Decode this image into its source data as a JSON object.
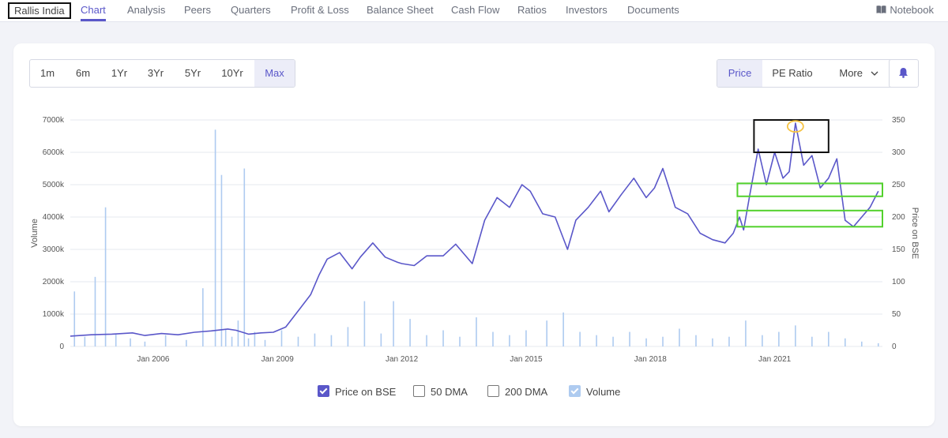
{
  "nav": {
    "company": "Rallis India",
    "items": [
      "Chart",
      "Analysis",
      "Peers",
      "Quarters",
      "Profit & Loss",
      "Balance Sheet",
      "Cash Flow",
      "Ratios",
      "Investors",
      "Documents"
    ],
    "notebook": "Notebook"
  },
  "ranges": [
    "1m",
    "6m",
    "1Yr",
    "3Yr",
    "5Yr",
    "10Yr",
    "Max"
  ],
  "metrics": {
    "price": "Price",
    "pe": "PE Ratio",
    "more": "More"
  },
  "legend": {
    "price": "Price on BSE",
    "dma50": "50 DMA",
    "dma200": "200 DMA",
    "volume": "Volume"
  },
  "colors": {
    "price": "#5a57c9",
    "volume": "#aecbf0",
    "highlight_green": "#52d12c",
    "highlight_yellow": "#f6c343"
  },
  "chart_data": {
    "type": "line",
    "title": "",
    "ylabel_left": "Volume",
    "ylabel_right": "Price on BSE",
    "y_left_ticks": [
      "0",
      "1000k",
      "2000k",
      "3000k",
      "4000k",
      "5000k",
      "6000k",
      "7000k"
    ],
    "y_right_ticks": [
      "0",
      "50",
      "100",
      "150",
      "200",
      "250",
      "300",
      "350"
    ],
    "ylim_left": [
      0,
      7000000
    ],
    "ylim_right": [
      0,
      350
    ],
    "xlim": [
      2004.0,
      2023.6
    ],
    "x_ticks": [
      {
        "label": "Jan 2006",
        "x": 2006.0
      },
      {
        "label": "Jan 2009",
        "x": 2009.0
      },
      {
        "label": "Jan 2012",
        "x": 2012.0
      },
      {
        "label": "Jan 2015",
        "x": 2015.0
      },
      {
        "label": "Jan 2018",
        "x": 2018.0
      },
      {
        "label": "Jan 2021",
        "x": 2021.0
      }
    ],
    "series": [
      {
        "name": "Price on BSE",
        "axis": "right",
        "x": [
          2004.0,
          2004.5,
          2005.0,
          2005.5,
          2005.8,
          2006.2,
          2006.6,
          2007.0,
          2007.4,
          2007.8,
          2008.0,
          2008.3,
          2008.6,
          2008.9,
          2009.2,
          2009.5,
          2009.8,
          2010.0,
          2010.2,
          2010.5,
          2010.8,
          2011.0,
          2011.3,
          2011.6,
          2011.9,
          2012.0,
          2012.3,
          2012.6,
          2013.0,
          2013.3,
          2013.7,
          2014.0,
          2014.3,
          2014.6,
          2014.9,
          2015.1,
          2015.4,
          2015.7,
          2016.0,
          2016.2,
          2016.5,
          2016.8,
          2017.0,
          2017.3,
          2017.6,
          2017.9,
          2018.1,
          2018.3,
          2018.6,
          2018.9,
          2019.2,
          2019.5,
          2019.8,
          2020.0,
          2020.15,
          2020.25,
          2020.4,
          2020.6,
          2020.8,
          2021.0,
          2021.2,
          2021.35,
          2021.5,
          2021.7,
          2021.9,
          2022.1,
          2022.3,
          2022.5,
          2022.7,
          2022.9,
          2023.1,
          2023.3,
          2023.5
        ],
        "values": [
          16,
          18,
          19,
          21,
          17,
          20,
          18,
          22,
          24,
          27,
          25,
          19,
          21,
          22,
          30,
          55,
          80,
          110,
          135,
          145,
          120,
          138,
          160,
          138,
          130,
          128,
          125,
          140,
          140,
          158,
          128,
          195,
          230,
          215,
          250,
          240,
          205,
          200,
          150,
          195,
          215,
          240,
          208,
          235,
          260,
          230,
          245,
          275,
          215,
          205,
          175,
          165,
          160,
          175,
          200,
          180,
          235,
          305,
          250,
          300,
          260,
          270,
          345,
          280,
          295,
          245,
          260,
          290,
          195,
          185,
          200,
          215,
          240
        ]
      },
      {
        "name": "Volume",
        "axis": "left",
        "x": [
          2004.1,
          2004.35,
          2004.6,
          2004.85,
          2005.1,
          2005.45,
          2005.8,
          2006.3,
          2006.8,
          2007.2,
          2007.5,
          2007.65,
          2007.75,
          2007.9,
          2008.05,
          2008.2,
          2008.3,
          2008.45,
          2008.7,
          2009.1,
          2009.5,
          2009.9,
          2010.3,
          2010.7,
          2011.1,
          2011.5,
          2011.8,
          2012.2,
          2012.6,
          2013.0,
          2013.4,
          2013.8,
          2014.2,
          2014.6,
          2015.0,
          2015.5,
          2015.9,
          2016.3,
          2016.7,
          2017.1,
          2017.5,
          2017.9,
          2018.3,
          2018.7,
          2019.1,
          2019.5,
          2019.9,
          2020.3,
          2020.7,
          2021.1,
          2021.5,
          2021.9,
          2022.3,
          2022.7,
          2023.1,
          2023.5
        ],
        "values": [
          1700000,
          300000,
          2150000,
          4300000,
          400000,
          250000,
          150000,
          350000,
          200000,
          1800000,
          6700000,
          5300000,
          550000,
          300000,
          800000,
          5500000,
          250000,
          450000,
          200000,
          500000,
          300000,
          400000,
          350000,
          600000,
          1400000,
          400000,
          1400000,
          850000,
          350000,
          500000,
          300000,
          900000,
          450000,
          350000,
          500000,
          800000,
          1050000,
          450000,
          350000,
          300000,
          450000,
          250000,
          300000,
          550000,
          350000,
          250000,
          300000,
          800000,
          350000,
          450000,
          650000,
          300000,
          450000,
          250000,
          150000,
          100000
        ]
      }
    ],
    "annotations": [
      {
        "shape": "rect",
        "color": "black",
        "x0": 2020.5,
        "x1": 2022.3,
        "y0": 300,
        "y1": 350
      },
      {
        "shape": "ellipse",
        "color": "yellow",
        "cx": 2021.5,
        "cy": 340
      },
      {
        "shape": "rect",
        "color": "green",
        "x0": 2020.1,
        "x1": 2023.6,
        "y0": 232,
        "y1": 252
      },
      {
        "shape": "rect",
        "color": "green",
        "x0": 2020.1,
        "x1": 2023.6,
        "y0": 185,
        "y1": 210
      }
    ],
    "grid": true,
    "legend_position": "bottom-center"
  }
}
